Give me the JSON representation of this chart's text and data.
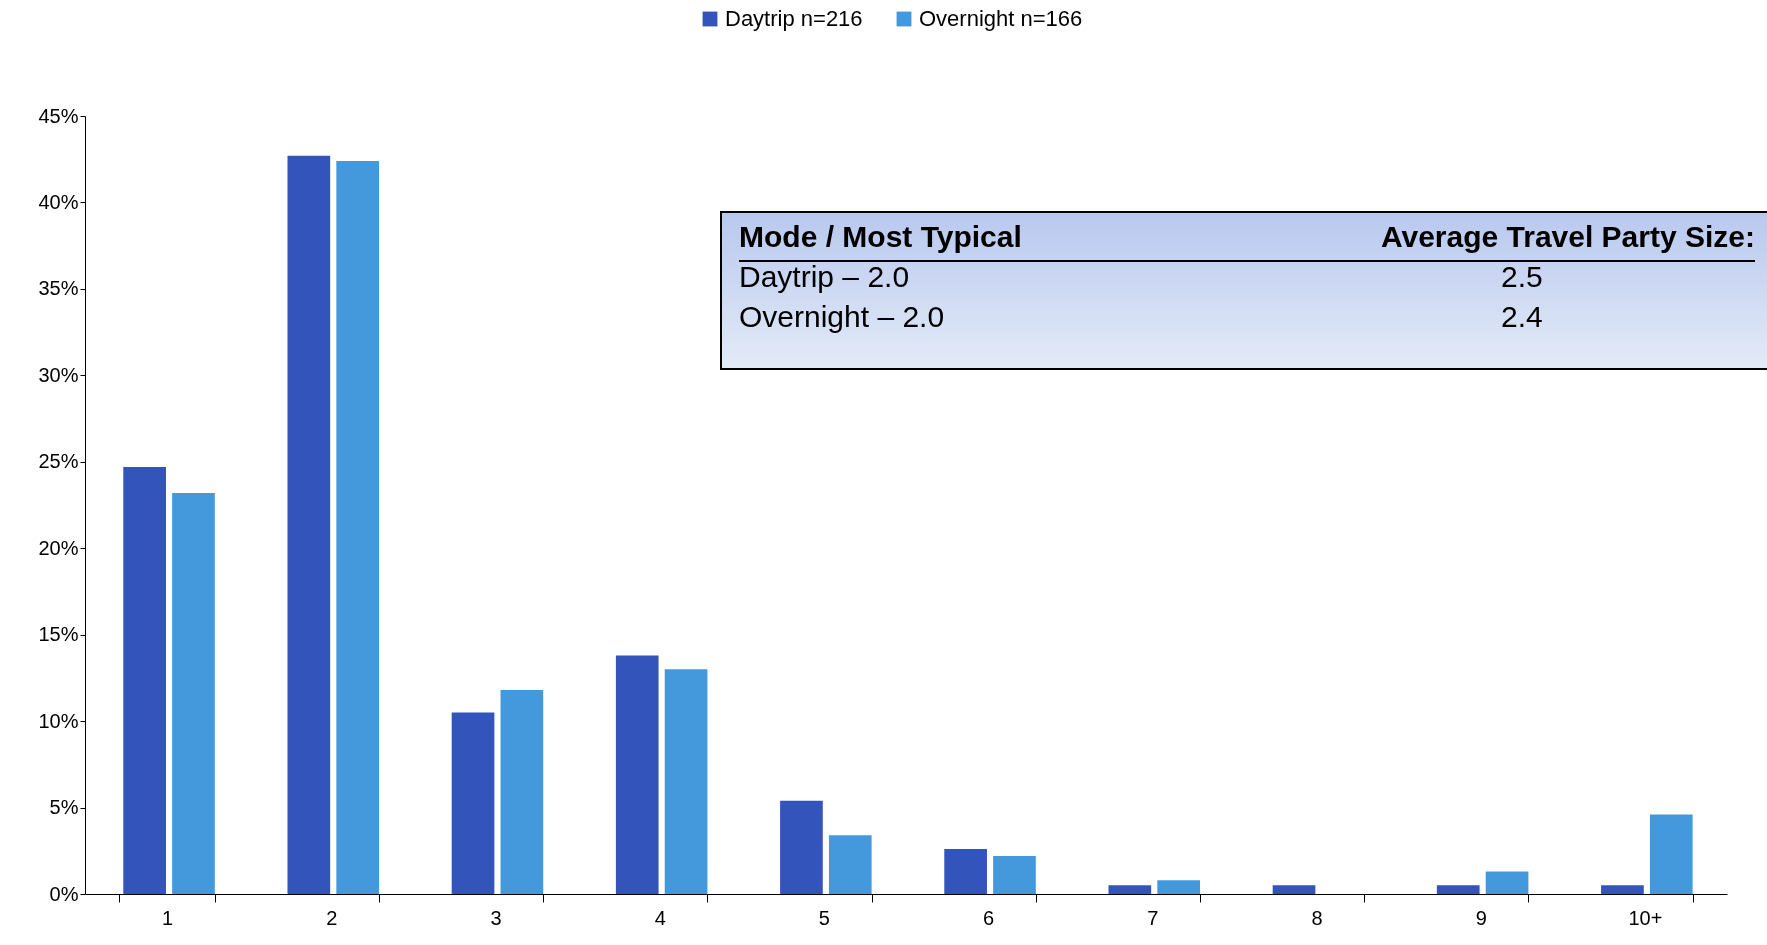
{
  "chart_data": {
    "type": "bar",
    "categories": [
      "1",
      "2",
      "3",
      "4",
      "5",
      "6",
      "7",
      "8",
      "9",
      "10+"
    ],
    "series": [
      {
        "name": "Daytrip n=216",
        "color": "#3355bb",
        "values": [
          24.7,
          42.7,
          10.5,
          13.8,
          5.4,
          2.6,
          0.5,
          0.5,
          0.5,
          0.5
        ]
      },
      {
        "name": "Overnight n=166",
        "color": "#4499dd",
        "values": [
          23.2,
          42.4,
          11.8,
          13.0,
          3.4,
          2.2,
          0.8,
          0,
          1.3,
          4.6
        ]
      }
    ],
    "ylim": [
      0,
      45
    ],
    "yticks": [
      {
        "value": 0,
        "label": "0%"
      },
      {
        "value": 5,
        "label": "5%"
      },
      {
        "value": 10,
        "label": "10%"
      },
      {
        "value": 15,
        "label": "15%"
      },
      {
        "value": 20,
        "label": "20%"
      },
      {
        "value": 25,
        "label": "25%"
      },
      {
        "value": 30,
        "label": "30%"
      },
      {
        "value": 35,
        "label": "35%"
      },
      {
        "value": 40,
        "label": "40%"
      },
      {
        "value": 45,
        "label": "45%"
      }
    ],
    "grid": false,
    "legend": "top",
    "annotations": [
      "Mode / Most Typical",
      "Average Travel Party Size:",
      "Daytrip – 2.0",
      "2.5",
      "Overnight –  2.0",
      "2.4"
    ]
  }
}
